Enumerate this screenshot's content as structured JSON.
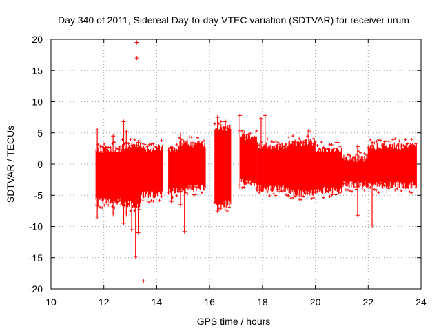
{
  "chart_data": {
    "type": "scatter",
    "title": "Day 340 of 2011, Sidereal Day-to-day VTEC variation (SDTVAR) for receiver urum",
    "xlabel": "GPS time / hours",
    "ylabel": "SDTVAR / TECUs",
    "xlim": [
      10,
      24
    ],
    "ylim": [
      -20,
      20
    ],
    "xticks": [
      10,
      12,
      14,
      16,
      18,
      20,
      22,
      24
    ],
    "xtick_labels": [
      "10",
      "12",
      "14",
      "16",
      "18",
      "20",
      "22",
      "24"
    ],
    "yticks": [
      20,
      15,
      10,
      5,
      0,
      -5,
      -10,
      -15,
      -20
    ],
    "ytick_labels": [
      "20",
      "15",
      "10",
      "5",
      "0",
      "-5",
      "-10",
      "-15",
      "-20"
    ],
    "grid": true,
    "marker": "+",
    "series_color": "#ff0000",
    "series": [
      {
        "name": "SDTVAR",
        "segments": [
          {
            "x_start": 11.7,
            "x_end": 12.7,
            "upper": 3.0,
            "lower": -6.5
          },
          {
            "x_start": 12.7,
            "x_end": 13.4,
            "upper": 3.5,
            "lower": -7.0
          },
          {
            "x_start": 13.4,
            "x_end": 14.25,
            "upper": 3.2,
            "lower": -5.5
          },
          {
            "x_start": 14.45,
            "x_end": 14.85,
            "upper": 3.0,
            "lower": -5.0
          },
          {
            "x_start": 14.85,
            "x_end": 15.85,
            "upper": 3.8,
            "lower": -4.5
          },
          {
            "x_start": 16.2,
            "x_end": 16.8,
            "upper": 6.5,
            "lower": -7.0
          },
          {
            "x_start": 17.15,
            "x_end": 17.8,
            "upper": 5.0,
            "lower": -3.5
          },
          {
            "x_start": 17.8,
            "x_end": 19.0,
            "upper": 3.5,
            "lower": -4.5
          },
          {
            "x_start": 19.0,
            "x_end": 20.0,
            "upper": 4.0,
            "lower": -5.2
          },
          {
            "x_start": 20.0,
            "x_end": 21.0,
            "upper": 3.0,
            "lower": -4.8
          },
          {
            "x_start": 21.0,
            "x_end": 22.0,
            "upper": 1.5,
            "lower": -3.8
          },
          {
            "x_start": 22.0,
            "x_end": 23.85,
            "upper": 3.5,
            "lower": -4.0
          }
        ],
        "spikes": [
          {
            "x": 11.75,
            "y_min": -8.5,
            "y_max": 5.5
          },
          {
            "x": 12.35,
            "y_min": -8.0,
            "y_max": 4.5
          },
          {
            "x": 12.75,
            "y_min": -9.5,
            "y_max": 6.8
          },
          {
            "x": 12.85,
            "y_min": -8.0,
            "y_max": 5.2
          },
          {
            "x": 13.05,
            "y_min": -10.5,
            "y_max": 3.0
          },
          {
            "x": 13.2,
            "y_min": -14.8,
            "y_max": 2.5
          },
          {
            "x": 13.3,
            "y_min": -11.0,
            "y_max": 3.5
          },
          {
            "x": 14.55,
            "y_min": -6.0,
            "y_max": 2.5
          },
          {
            "x": 14.9,
            "y_min": -6.5,
            "y_max": 4.8
          },
          {
            "x": 15.05,
            "y_min": -10.8,
            "y_max": 3.0
          },
          {
            "x": 16.3,
            "y_min": -7.5,
            "y_max": 7.5
          },
          {
            "x": 16.6,
            "y_min": -5.5,
            "y_max": 6.8
          },
          {
            "x": 17.15,
            "y_min": -3.8,
            "y_max": 7.8
          },
          {
            "x": 17.95,
            "y_min": -4.0,
            "y_max": 7.3
          },
          {
            "x": 18.1,
            "y_min": -3.5,
            "y_max": 7.8
          },
          {
            "x": 19.75,
            "y_min": -4.0,
            "y_max": 5.3
          },
          {
            "x": 21.6,
            "y_min": -8.2,
            "y_max": 2.8
          },
          {
            "x": 22.15,
            "y_min": -9.8,
            "y_max": 3.0
          }
        ],
        "outliers": [
          {
            "x": 13.25,
            "y": 19.5
          },
          {
            "x": 13.25,
            "y": 17.0
          },
          {
            "x": 13.5,
            "y": -18.7
          }
        ]
      }
    ]
  }
}
